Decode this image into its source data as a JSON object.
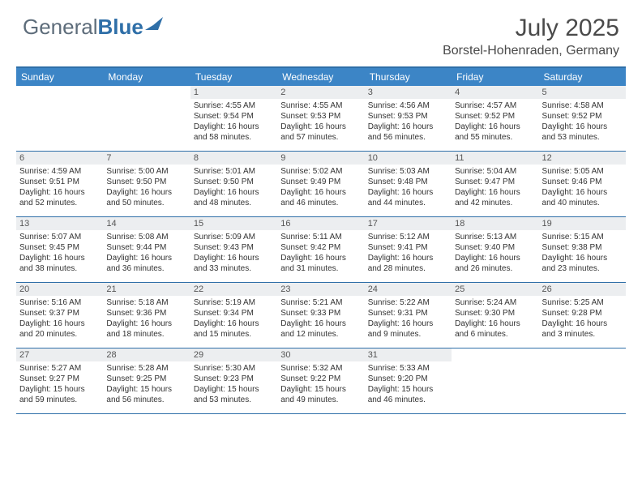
{
  "brand": {
    "part1": "General",
    "part2": "Blue"
  },
  "title": "July 2025",
  "location": "Borstel-Hohenraden, Germany",
  "colors": {
    "header_bg": "#3c85c6",
    "border": "#2f6fa8",
    "daynum_bg": "#eceef0",
    "text": "#333333",
    "brand_gray": "#5d6c7a",
    "brand_blue": "#2f6fa8"
  },
  "weekdays": [
    "Sunday",
    "Monday",
    "Tuesday",
    "Wednesday",
    "Thursday",
    "Friday",
    "Saturday"
  ],
  "weeks": [
    [
      {
        "num": "",
        "lines": []
      },
      {
        "num": "",
        "lines": []
      },
      {
        "num": "1",
        "lines": [
          "Sunrise: 4:55 AM",
          "Sunset: 9:54 PM",
          "Daylight: 16 hours",
          "and 58 minutes."
        ]
      },
      {
        "num": "2",
        "lines": [
          "Sunrise: 4:55 AM",
          "Sunset: 9:53 PM",
          "Daylight: 16 hours",
          "and 57 minutes."
        ]
      },
      {
        "num": "3",
        "lines": [
          "Sunrise: 4:56 AM",
          "Sunset: 9:53 PM",
          "Daylight: 16 hours",
          "and 56 minutes."
        ]
      },
      {
        "num": "4",
        "lines": [
          "Sunrise: 4:57 AM",
          "Sunset: 9:52 PM",
          "Daylight: 16 hours",
          "and 55 minutes."
        ]
      },
      {
        "num": "5",
        "lines": [
          "Sunrise: 4:58 AM",
          "Sunset: 9:52 PM",
          "Daylight: 16 hours",
          "and 53 minutes."
        ]
      }
    ],
    [
      {
        "num": "6",
        "lines": [
          "Sunrise: 4:59 AM",
          "Sunset: 9:51 PM",
          "Daylight: 16 hours",
          "and 52 minutes."
        ]
      },
      {
        "num": "7",
        "lines": [
          "Sunrise: 5:00 AM",
          "Sunset: 9:50 PM",
          "Daylight: 16 hours",
          "and 50 minutes."
        ]
      },
      {
        "num": "8",
        "lines": [
          "Sunrise: 5:01 AM",
          "Sunset: 9:50 PM",
          "Daylight: 16 hours",
          "and 48 minutes."
        ]
      },
      {
        "num": "9",
        "lines": [
          "Sunrise: 5:02 AM",
          "Sunset: 9:49 PM",
          "Daylight: 16 hours",
          "and 46 minutes."
        ]
      },
      {
        "num": "10",
        "lines": [
          "Sunrise: 5:03 AM",
          "Sunset: 9:48 PM",
          "Daylight: 16 hours",
          "and 44 minutes."
        ]
      },
      {
        "num": "11",
        "lines": [
          "Sunrise: 5:04 AM",
          "Sunset: 9:47 PM",
          "Daylight: 16 hours",
          "and 42 minutes."
        ]
      },
      {
        "num": "12",
        "lines": [
          "Sunrise: 5:05 AM",
          "Sunset: 9:46 PM",
          "Daylight: 16 hours",
          "and 40 minutes."
        ]
      }
    ],
    [
      {
        "num": "13",
        "lines": [
          "Sunrise: 5:07 AM",
          "Sunset: 9:45 PM",
          "Daylight: 16 hours",
          "and 38 minutes."
        ]
      },
      {
        "num": "14",
        "lines": [
          "Sunrise: 5:08 AM",
          "Sunset: 9:44 PM",
          "Daylight: 16 hours",
          "and 36 minutes."
        ]
      },
      {
        "num": "15",
        "lines": [
          "Sunrise: 5:09 AM",
          "Sunset: 9:43 PM",
          "Daylight: 16 hours",
          "and 33 minutes."
        ]
      },
      {
        "num": "16",
        "lines": [
          "Sunrise: 5:11 AM",
          "Sunset: 9:42 PM",
          "Daylight: 16 hours",
          "and 31 minutes."
        ]
      },
      {
        "num": "17",
        "lines": [
          "Sunrise: 5:12 AM",
          "Sunset: 9:41 PM",
          "Daylight: 16 hours",
          "and 28 minutes."
        ]
      },
      {
        "num": "18",
        "lines": [
          "Sunrise: 5:13 AM",
          "Sunset: 9:40 PM",
          "Daylight: 16 hours",
          "and 26 minutes."
        ]
      },
      {
        "num": "19",
        "lines": [
          "Sunrise: 5:15 AM",
          "Sunset: 9:38 PM",
          "Daylight: 16 hours",
          "and 23 minutes."
        ]
      }
    ],
    [
      {
        "num": "20",
        "lines": [
          "Sunrise: 5:16 AM",
          "Sunset: 9:37 PM",
          "Daylight: 16 hours",
          "and 20 minutes."
        ]
      },
      {
        "num": "21",
        "lines": [
          "Sunrise: 5:18 AM",
          "Sunset: 9:36 PM",
          "Daylight: 16 hours",
          "and 18 minutes."
        ]
      },
      {
        "num": "22",
        "lines": [
          "Sunrise: 5:19 AM",
          "Sunset: 9:34 PM",
          "Daylight: 16 hours",
          "and 15 minutes."
        ]
      },
      {
        "num": "23",
        "lines": [
          "Sunrise: 5:21 AM",
          "Sunset: 9:33 PM",
          "Daylight: 16 hours",
          "and 12 minutes."
        ]
      },
      {
        "num": "24",
        "lines": [
          "Sunrise: 5:22 AM",
          "Sunset: 9:31 PM",
          "Daylight: 16 hours",
          "and 9 minutes."
        ]
      },
      {
        "num": "25",
        "lines": [
          "Sunrise: 5:24 AM",
          "Sunset: 9:30 PM",
          "Daylight: 16 hours",
          "and 6 minutes."
        ]
      },
      {
        "num": "26",
        "lines": [
          "Sunrise: 5:25 AM",
          "Sunset: 9:28 PM",
          "Daylight: 16 hours",
          "and 3 minutes."
        ]
      }
    ],
    [
      {
        "num": "27",
        "lines": [
          "Sunrise: 5:27 AM",
          "Sunset: 9:27 PM",
          "Daylight: 15 hours",
          "and 59 minutes."
        ]
      },
      {
        "num": "28",
        "lines": [
          "Sunrise: 5:28 AM",
          "Sunset: 9:25 PM",
          "Daylight: 15 hours",
          "and 56 minutes."
        ]
      },
      {
        "num": "29",
        "lines": [
          "Sunrise: 5:30 AM",
          "Sunset: 9:23 PM",
          "Daylight: 15 hours",
          "and 53 minutes."
        ]
      },
      {
        "num": "30",
        "lines": [
          "Sunrise: 5:32 AM",
          "Sunset: 9:22 PM",
          "Daylight: 15 hours",
          "and 49 minutes."
        ]
      },
      {
        "num": "31",
        "lines": [
          "Sunrise: 5:33 AM",
          "Sunset: 9:20 PM",
          "Daylight: 15 hours",
          "and 46 minutes."
        ]
      },
      {
        "num": "",
        "lines": []
      },
      {
        "num": "",
        "lines": []
      }
    ]
  ]
}
